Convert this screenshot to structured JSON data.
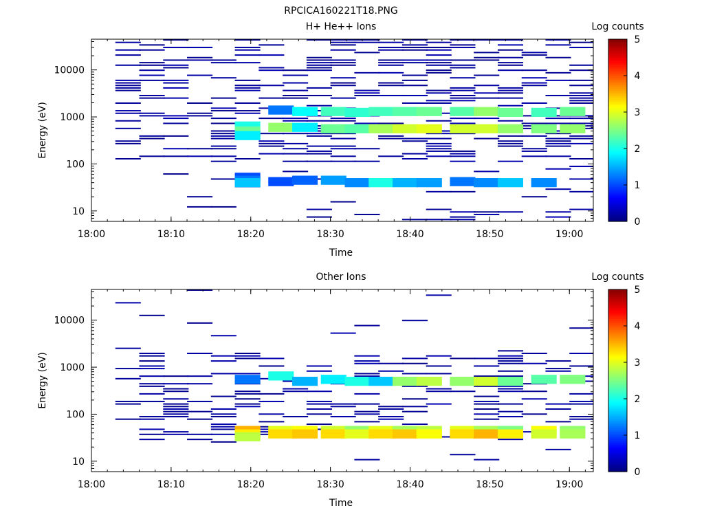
{
  "figure_title": "RPCICA160221T18.PNG",
  "chart_data": [
    {
      "type": "heatmap",
      "title": "H+ He++ Ions",
      "xlabel": "Time",
      "ylabel": "Energy (eV)",
      "x_ticks": [
        "18:00",
        "18:10",
        "18:20",
        "18:30",
        "18:40",
        "18:50",
        "19:00"
      ],
      "x_range": [
        "18:00",
        "19:03"
      ],
      "y_scale": "log",
      "y_ticks": [
        "10",
        "100",
        "1000",
        "10000"
      ],
      "y_range": [
        6,
        45000
      ],
      "colorbar": {
        "label": "Log counts",
        "ticks": [
          "0",
          "1",
          "2",
          "3",
          "4",
          "5"
        ],
        "range": [
          0,
          5
        ],
        "colormap": "jet"
      },
      "time_bins_start": [
        "18:03",
        "18:06",
        "18:09",
        "18:12",
        "18:15",
        "18:18",
        "18:21",
        "18:24",
        "18:27",
        "18:30",
        "18:33",
        "18:36",
        "18:39",
        "18:42",
        "18:45",
        "18:48",
        "18:51",
        "18:54",
        "18:57",
        "19:00"
      ],
      "time_bin_width_min": 3.2,
      "cells": [
        [
          18.3,
          640,
          2.0
        ],
        [
          18.3,
          500,
          2.4
        ],
        [
          18.3,
          400,
          1.8
        ],
        [
          18.3,
          52,
          1.0
        ],
        [
          18.3,
          45,
          1.2
        ],
        [
          18.3,
          40,
          1.6
        ],
        [
          18.37,
          600,
          2.6
        ],
        [
          18.37,
          1400,
          1.2
        ],
        [
          18.37,
          42,
          1.0
        ],
        [
          18.42,
          1300,
          1.9
        ],
        [
          18.42,
          600,
          1.8
        ],
        [
          18.42,
          45,
          1.1
        ],
        [
          18.48,
          1300,
          2.2
        ],
        [
          18.48,
          560,
          2.4
        ],
        [
          18.48,
          45,
          1.4
        ],
        [
          18.53,
          1250,
          2.1
        ],
        [
          18.53,
          560,
          2.3
        ],
        [
          18.53,
          40,
          1.3
        ],
        [
          18.58,
          1300,
          2.2
        ],
        [
          18.58,
          560,
          2.7
        ],
        [
          18.58,
          40,
          2.0
        ],
        [
          18.63,
          1300,
          2.3
        ],
        [
          18.63,
          560,
          2.9
        ],
        [
          18.63,
          40,
          1.5
        ],
        [
          18.68,
          1300,
          2.4
        ],
        [
          18.68,
          560,
          3.0
        ],
        [
          18.68,
          40,
          1.4
        ],
        [
          18.75,
          1300,
          2.3
        ],
        [
          18.75,
          560,
          2.9
        ],
        [
          18.75,
          42,
          1.2
        ],
        [
          18.8,
          1300,
          2.6
        ],
        [
          18.8,
          560,
          2.9
        ],
        [
          18.8,
          40,
          1.3
        ],
        [
          18.85,
          1250,
          2.4
        ],
        [
          18.85,
          560,
          2.6
        ],
        [
          18.85,
          40,
          1.6
        ],
        [
          18.92,
          1250,
          2.2
        ],
        [
          18.92,
          560,
          2.5
        ],
        [
          18.92,
          40,
          1.3
        ],
        [
          18.98,
          1300,
          2.4
        ],
        [
          18.98,
          560,
          2.6
        ]
      ]
    },
    {
      "type": "heatmap",
      "title": "Other Ions",
      "xlabel": "Time",
      "ylabel": "Energy (eV)",
      "x_ticks": [
        "18:00",
        "18:10",
        "18:20",
        "18:30",
        "18:40",
        "18:50",
        "19:00"
      ],
      "x_range": [
        "18:00",
        "19:03"
      ],
      "y_scale": "log",
      "y_ticks": [
        "10",
        "100",
        "1000",
        "10000"
      ],
      "y_range": [
        6,
        45000
      ],
      "colorbar": {
        "label": "Log counts",
        "ticks": [
          "0",
          "1",
          "2",
          "3",
          "4",
          "5"
        ],
        "range": [
          0,
          5
        ],
        "colormap": "jet"
      },
      "time_bins_start": [
        "18:03",
        "18:06",
        "18:09",
        "18:12",
        "18:15",
        "18:18",
        "18:21",
        "18:24",
        "18:27",
        "18:30",
        "18:33",
        "18:36",
        "18:39",
        "18:42",
        "18:45",
        "18:48",
        "18:51",
        "18:54",
        "18:57",
        "19:00"
      ],
      "time_bin_width_min": 3.2,
      "cells": [
        [
          18.3,
          550,
          1.2
        ],
        [
          18.3,
          45,
          3.5
        ],
        [
          18.3,
          38,
          3.2
        ],
        [
          18.3,
          33,
          2.8
        ],
        [
          18.37,
          650,
          2.0
        ],
        [
          18.37,
          45,
          3.0
        ],
        [
          18.37,
          38,
          3.3
        ],
        [
          18.42,
          500,
          1.5
        ],
        [
          18.42,
          45,
          3.1
        ],
        [
          18.42,
          38,
          3.4
        ],
        [
          18.48,
          550,
          1.8
        ],
        [
          18.48,
          45,
          2.9
        ],
        [
          18.48,
          38,
          3.3
        ],
        [
          18.53,
          500,
          2.0
        ],
        [
          18.53,
          45,
          2.6
        ],
        [
          18.53,
          38,
          3.0
        ],
        [
          18.58,
          500,
          1.6
        ],
        [
          18.58,
          45,
          3.0
        ],
        [
          18.58,
          38,
          3.3
        ],
        [
          18.63,
          500,
          2.6
        ],
        [
          18.63,
          45,
          2.7
        ],
        [
          18.63,
          38,
          3.4
        ],
        [
          18.68,
          500,
          2.8
        ],
        [
          18.68,
          45,
          2.8
        ],
        [
          18.68,
          38,
          3.1
        ],
        [
          18.75,
          500,
          2.6
        ],
        [
          18.75,
          45,
          3.0
        ],
        [
          18.75,
          38,
          3.3
        ],
        [
          18.8,
          500,
          2.9
        ],
        [
          18.8,
          45,
          2.7
        ],
        [
          18.8,
          38,
          3.5
        ],
        [
          18.85,
          500,
          2.4
        ],
        [
          18.85,
          45,
          2.5
        ],
        [
          18.85,
          38,
          3.2
        ],
        [
          18.92,
          550,
          2.3
        ],
        [
          18.92,
          45,
          3.1
        ],
        [
          18.92,
          38,
          2.9
        ],
        [
          18.98,
          550,
          2.5
        ],
        [
          18.98,
          45,
          2.6
        ],
        [
          18.98,
          38,
          2.7
        ]
      ]
    }
  ]
}
